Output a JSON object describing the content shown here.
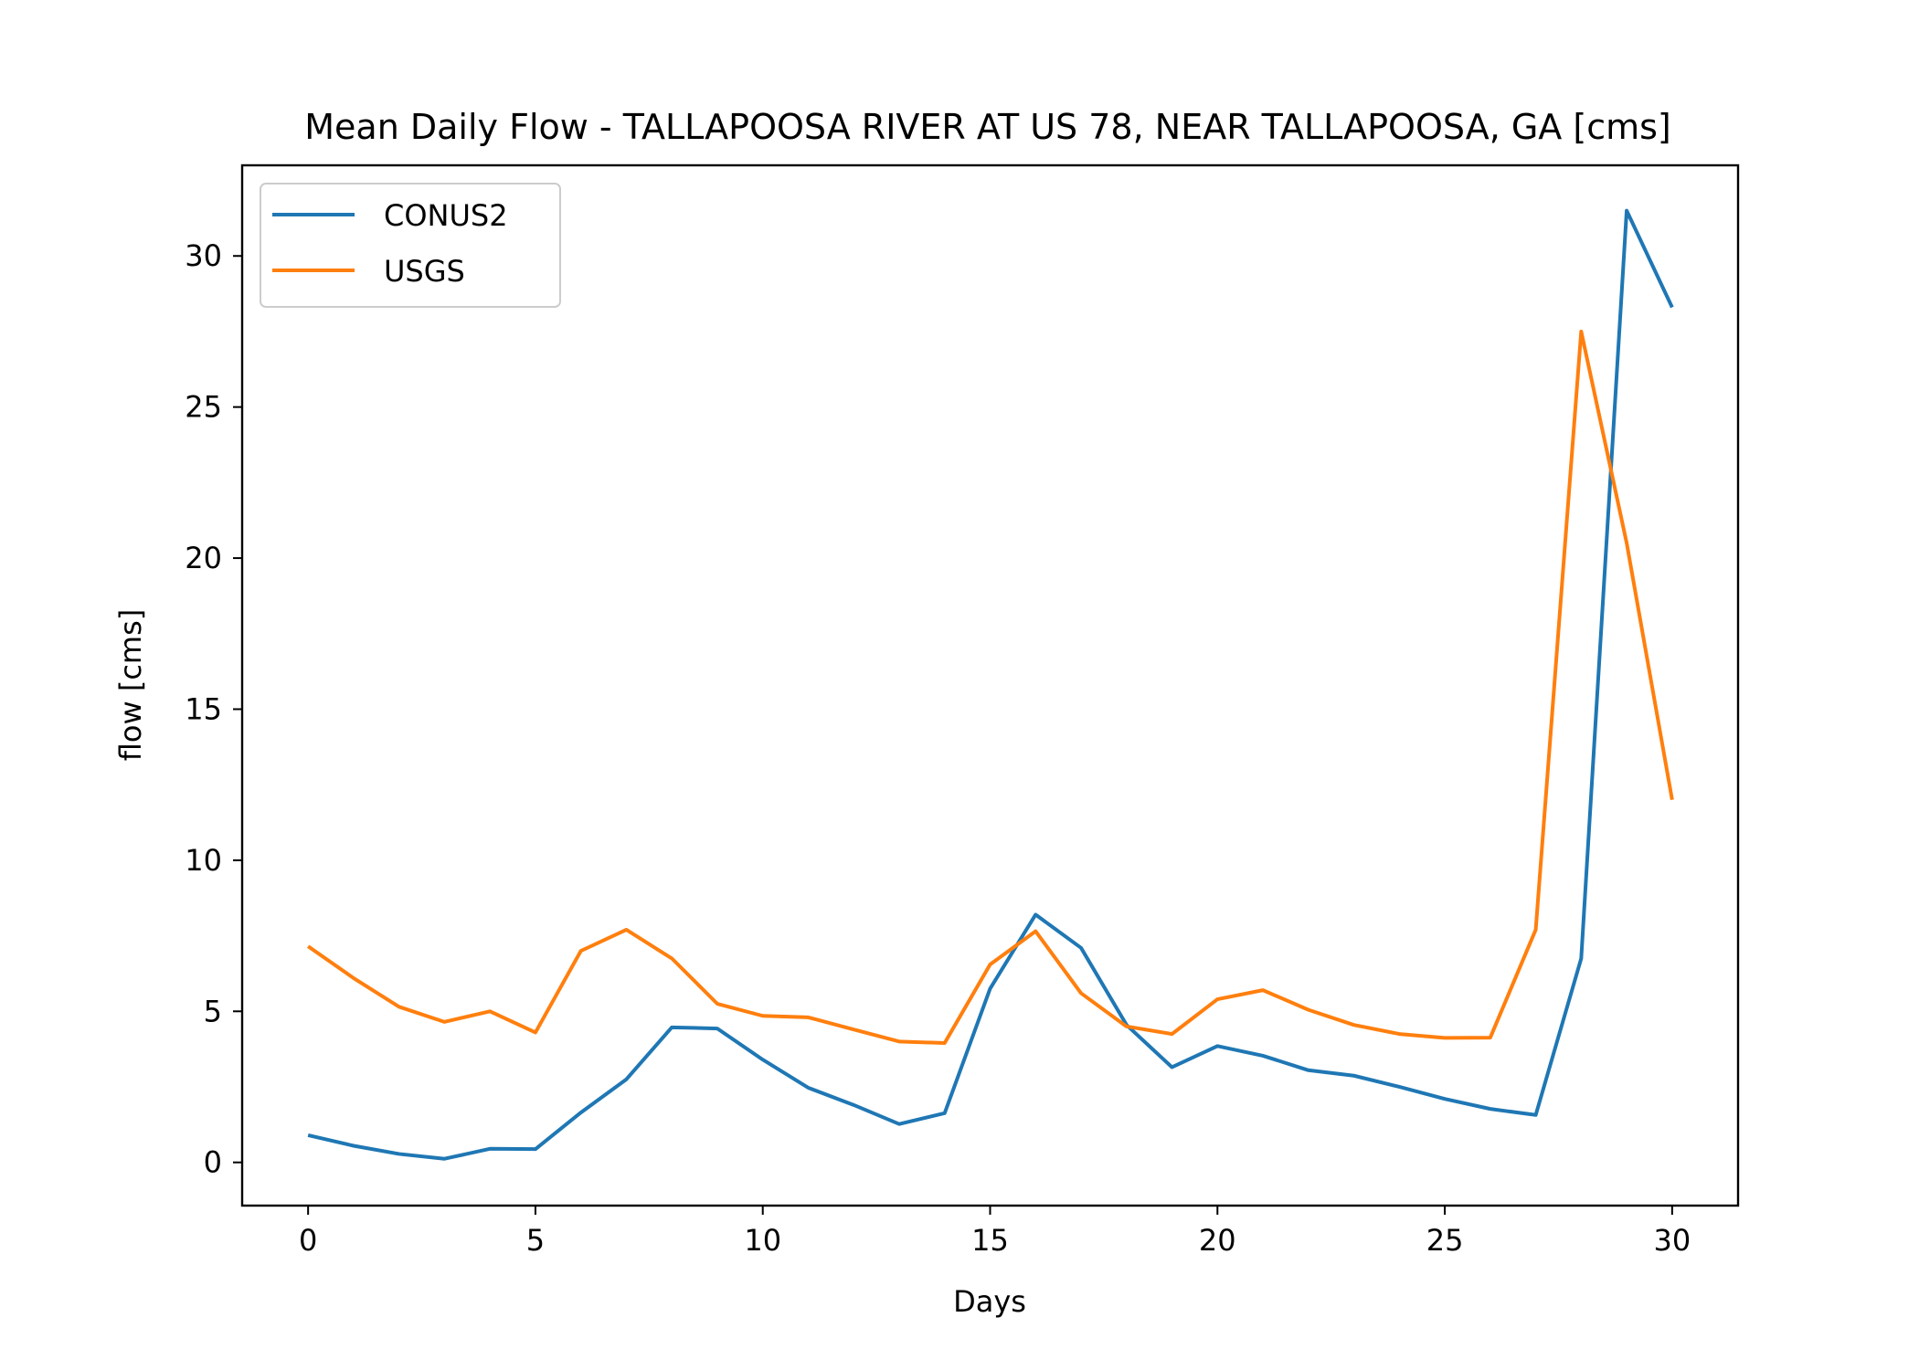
{
  "chart_data": {
    "type": "line",
    "title": "Mean Daily Flow - TALLAPOOSA RIVER AT US 78, NEAR TALLAPOOSA, GA [cms]",
    "xlabel": "Days",
    "ylabel": "flow [cms]",
    "xlim": [
      -1.45,
      31.45
    ],
    "ylim": [
      -1.43,
      33.0
    ],
    "xticks": [
      0,
      5,
      10,
      15,
      20,
      25,
      30
    ],
    "yticks": [
      0,
      5,
      10,
      15,
      20,
      25,
      30
    ],
    "grid": false,
    "legend_position": "top-left",
    "x": [
      0,
      1,
      2,
      3,
      4,
      5,
      6,
      7,
      8,
      9,
      10,
      11,
      12,
      13,
      14,
      15,
      16,
      17,
      18,
      19,
      20,
      21,
      22,
      23,
      24,
      25,
      26,
      27,
      28,
      29,
      30
    ],
    "series": [
      {
        "name": "CONUS2",
        "color": "#1f77b4",
        "values": [
          0.9,
          0.55,
          0.28,
          0.12,
          0.45,
          0.44,
          1.65,
          2.75,
          4.47,
          4.43,
          3.4,
          2.47,
          1.9,
          1.27,
          1.63,
          5.75,
          8.2,
          7.1,
          4.55,
          3.15,
          3.85,
          3.53,
          3.05,
          2.87,
          2.5,
          2.1,
          1.77,
          1.57,
          6.75,
          31.5,
          28.3
        ]
      },
      {
        "name": "USGS",
        "color": "#ff7f0e",
        "values": [
          7.15,
          6.1,
          5.15,
          4.65,
          5.0,
          4.3,
          7.0,
          7.7,
          6.75,
          5.25,
          4.85,
          4.8,
          4.4,
          4.0,
          3.95,
          6.55,
          7.65,
          5.6,
          4.5,
          4.25,
          5.4,
          5.7,
          5.05,
          4.55,
          4.25,
          4.12,
          4.13,
          7.7,
          27.5,
          20.5,
          12.0
        ]
      }
    ]
  }
}
